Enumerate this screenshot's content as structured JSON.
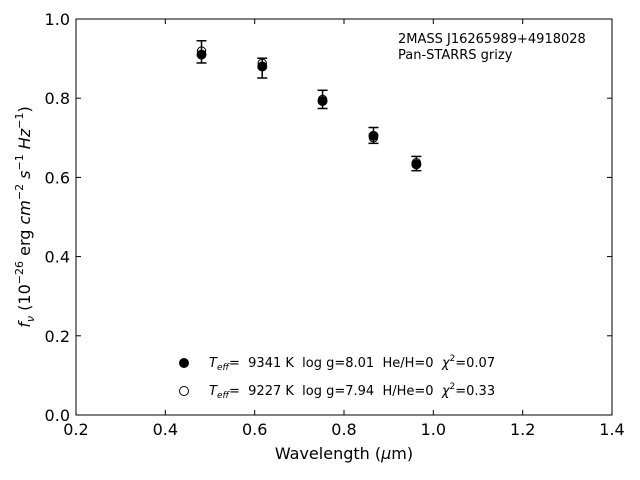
{
  "chart_data": {
    "type": "scatter",
    "title": "",
    "xlabel": {
      "text": "Wavelength (",
      "symbol": "μ",
      "unit": "m)"
    },
    "ylabel": {
      "f": "f",
      "nu": "ν",
      "open": "(10",
      "exp": "−26",
      "erg": " erg ",
      "cm": "cm",
      "cm_exp": "−2",
      "s": " s",
      "s_exp": "−1",
      "hz": " Hz",
      "hz_exp": "−1",
      "close": ")"
    },
    "xlim": [
      0.2,
      1.4
    ],
    "ylim": [
      0.0,
      1.0
    ],
    "xticks": [
      0.2,
      0.4,
      0.6,
      0.8,
      1.0,
      1.2,
      1.4
    ],
    "xtick_labels": [
      "0.2",
      "0.4",
      "0.6",
      "0.8",
      "1.0",
      "1.2",
      "1.4"
    ],
    "yticks": [
      0.0,
      0.2,
      0.4,
      0.6,
      0.8,
      1.0
    ],
    "ytick_labels": [
      "0.0",
      "0.2",
      "0.4",
      "0.6",
      "0.8",
      "1.0"
    ],
    "grid": false,
    "annotations": [
      "2MASS J16265989+4918028",
      "Pan-STARRS grizy"
    ],
    "observed": {
      "x": [
        0.481,
        0.617,
        0.752,
        0.866,
        0.962
      ],
      "y": [
        0.917,
        0.876,
        0.797,
        0.706,
        0.635
      ],
      "yerr": [
        0.028,
        0.025,
        0.023,
        0.02,
        0.018
      ]
    },
    "series": [
      {
        "marker": "filled-circle",
        "teff_label": "T",
        "teff_sub": "eff",
        "text": "=  9341 K  log g=8.01  He/H=0  ",
        "chi_label": "χ",
        "chi_exp": "2",
        "chi_value": "=0.07",
        "x": [
          0.481,
          0.617,
          0.752,
          0.866,
          0.962
        ],
        "y": [
          0.91,
          0.88,
          0.793,
          0.705,
          0.633
        ]
      },
      {
        "marker": "open-circle",
        "teff_label": "T",
        "teff_sub": "eff",
        "text": "=  9227 K  log g=7.94  H/He=0  ",
        "chi_label": "χ",
        "chi_exp": "2",
        "chi_value": "=0.33",
        "x": [
          0.481,
          0.617,
          0.752,
          0.866,
          0.962
        ],
        "y": [
          0.919,
          0.888,
          0.797,
          0.7,
          0.637
        ]
      }
    ],
    "legend_position": "lower-center",
    "colors": {
      "ink": "#000000",
      "background": "#ffffff"
    }
  }
}
